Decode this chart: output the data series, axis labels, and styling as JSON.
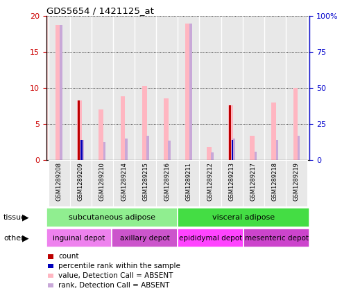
{
  "title": "GDS5654 / 1421125_at",
  "samples": [
    "GSM1289208",
    "GSM1289209",
    "GSM1289210",
    "GSM1289214",
    "GSM1289215",
    "GSM1289216",
    "GSM1289211",
    "GSM1289212",
    "GSM1289213",
    "GSM1289217",
    "GSM1289218",
    "GSM1289219"
  ],
  "value_absent": [
    18.8,
    8.3,
    7.0,
    8.8,
    10.3,
    8.5,
    19.0,
    1.8,
    7.6,
    3.3,
    8.0,
    10.0
  ],
  "rank_absent": [
    18.8,
    2.8,
    2.5,
    2.9,
    3.3,
    2.7,
    19.0,
    1.0,
    2.9,
    1.1,
    2.8,
    3.3
  ],
  "count": [
    0,
    8.3,
    0,
    0,
    0,
    0,
    0,
    0,
    7.6,
    0,
    0,
    0
  ],
  "percentile": [
    0,
    2.8,
    0,
    0,
    0,
    0,
    0,
    0,
    2.8,
    0,
    0,
    0
  ],
  "ylim": [
    0,
    20
  ],
  "yticks_left": [
    0,
    5,
    10,
    15,
    20
  ],
  "yticks_right_vals": [
    0,
    25,
    50,
    75,
    100
  ],
  "yticks_right_labels": [
    "0",
    "25",
    "50",
    "75",
    "100%"
  ],
  "tissue_groups": [
    {
      "label": "subcutaneous adipose",
      "span": [
        0,
        6
      ],
      "color": "#90EE90"
    },
    {
      "label": "visceral adipose",
      "span": [
        6,
        12
      ],
      "color": "#44DD44"
    }
  ],
  "other_groups": [
    {
      "label": "inguinal depot",
      "span": [
        0,
        3
      ],
      "color": "#EE82EE"
    },
    {
      "label": "axillary depot",
      "span": [
        3,
        6
      ],
      "color": "#CC55CC"
    },
    {
      "label": "epididymal depot",
      "span": [
        6,
        9
      ],
      "color": "#FF44FF"
    },
    {
      "label": "mesenteric depot",
      "span": [
        9,
        12
      ],
      "color": "#CC44CC"
    }
  ],
  "color_value_absent": "#FFB6C1",
  "color_rank_absent": "#C8A8D8",
  "color_count": "#BB0000",
  "color_percentile": "#0000BB",
  "left_axis_color": "#CC0000",
  "right_axis_color": "#0000CC",
  "bg_color": "#E8E8E8",
  "plot_bg": "#F0F0F0",
  "legend_items": [
    [
      "#BB0000",
      "count"
    ],
    [
      "#0000BB",
      "percentile rank within the sample"
    ],
    [
      "#FFB6C1",
      "value, Detection Call = ABSENT"
    ],
    [
      "#C8A8D8",
      "rank, Detection Call = ABSENT"
    ]
  ]
}
